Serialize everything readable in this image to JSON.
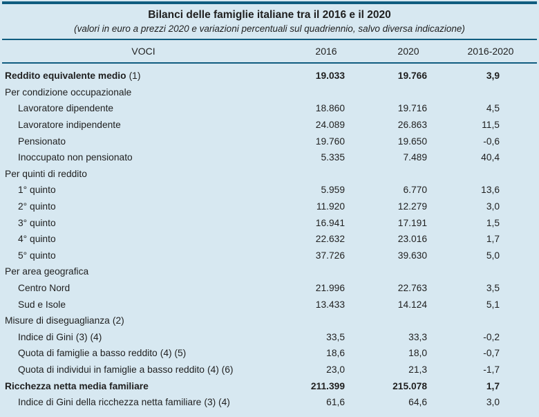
{
  "colors": {
    "background": "#d7e8f1",
    "rule": "#0f5c7f",
    "text": "#1f1f1f"
  },
  "table": {
    "title": "Bilanci delle famiglie italiane tra il 2016 e il 2020",
    "subtitle": "(valori in euro a prezzi 2020 e variazioni percentuali sul quadriennio, salvo diversa indicazione)",
    "columns": [
      "VOCI",
      "2016",
      "2020",
      "2016-2020"
    ],
    "rows": [
      {
        "type": "data-bold",
        "indent": 0,
        "label": "Reddito equivalente medio",
        "note": "(1)",
        "v2016": "19.033",
        "v2020": "19.766",
        "vdelta": "3,9"
      },
      {
        "type": "section",
        "indent": 0,
        "label": "Per condizione occupazionale",
        "note": "",
        "v2016": "",
        "v2020": "",
        "vdelta": ""
      },
      {
        "type": "data",
        "indent": 1,
        "label": "Lavoratore dipendente",
        "note": "",
        "v2016": "18.860",
        "v2020": "19.716",
        "vdelta": "4,5"
      },
      {
        "type": "data",
        "indent": 1,
        "label": "Lavoratore indipendente",
        "note": "",
        "v2016": "24.089",
        "v2020": "26.863",
        "vdelta": "11,5"
      },
      {
        "type": "data",
        "indent": 1,
        "label": "Pensionato",
        "note": "",
        "v2016": "19.760",
        "v2020": "19.650",
        "vdelta": "-0,6"
      },
      {
        "type": "data",
        "indent": 1,
        "label": "Inoccupato non pensionato",
        "note": "",
        "v2016": "5.335",
        "v2020": "7.489",
        "vdelta": "40,4"
      },
      {
        "type": "section",
        "indent": 0,
        "label": "Per quinti di reddito",
        "note": "",
        "v2016": "",
        "v2020": "",
        "vdelta": ""
      },
      {
        "type": "data",
        "indent": 1,
        "label": "1° quinto",
        "note": "",
        "v2016": "5.959",
        "v2020": "6.770",
        "vdelta": "13,6"
      },
      {
        "type": "data",
        "indent": 1,
        "label": "2° quinto",
        "note": "",
        "v2016": "11.920",
        "v2020": "12.279",
        "vdelta": "3,0"
      },
      {
        "type": "data",
        "indent": 1,
        "label": "3° quinto",
        "note": "",
        "v2016": "16.941",
        "v2020": "17.191",
        "vdelta": "1,5"
      },
      {
        "type": "data",
        "indent": 1,
        "label": "4° quinto",
        "note": "",
        "v2016": "22.632",
        "v2020": "23.016",
        "vdelta": "1,7"
      },
      {
        "type": "data",
        "indent": 1,
        "label": "5° quinto",
        "note": "",
        "v2016": "37.726",
        "v2020": "39.630",
        "vdelta": "5,0"
      },
      {
        "type": "section",
        "indent": 0,
        "label": "Per area geografica",
        "note": "",
        "v2016": "",
        "v2020": "",
        "vdelta": ""
      },
      {
        "type": "data",
        "indent": 1,
        "label": "Centro Nord",
        "note": "",
        "v2016": "21.996",
        "v2020": "22.763",
        "vdelta": "3,5"
      },
      {
        "type": "data",
        "indent": 1,
        "label": "Sud e Isole",
        "note": "",
        "v2016": "13.433",
        "v2020": "14.124",
        "vdelta": "5,1"
      },
      {
        "type": "section",
        "indent": 0,
        "label": "Misure di diseguaglianza",
        "note": "(2)",
        "v2016": "",
        "v2020": "",
        "vdelta": ""
      },
      {
        "type": "data",
        "indent": 1,
        "label": "Indice di Gini",
        "note": "(3) (4)",
        "v2016": "33,5",
        "v2020": "33,3",
        "vdelta": "-0,2"
      },
      {
        "type": "data",
        "indent": 1,
        "label": "Quota di famiglie a basso reddito",
        "note": "(4) (5)",
        "v2016": "18,6",
        "v2020": "18,0",
        "vdelta": "-0,7"
      },
      {
        "type": "data",
        "indent": 1,
        "label": "Quota di individui in famiglie a basso reddito",
        "note": "(4) (6)",
        "v2016": "23,0",
        "v2020": "21,3",
        "vdelta": "-1,7"
      },
      {
        "type": "data-bold",
        "indent": 0,
        "label": "Ricchezza netta media familiare",
        "note": "",
        "v2016": "211.399",
        "v2020": "215.078",
        "vdelta": "1,7"
      },
      {
        "type": "data",
        "indent": 1,
        "label": "Indice di Gini della ricchezza netta familiare",
        "note": "(3) (4)",
        "v2016": "61,6",
        "v2020": "64,6",
        "vdelta": "3,0"
      }
    ]
  }
}
